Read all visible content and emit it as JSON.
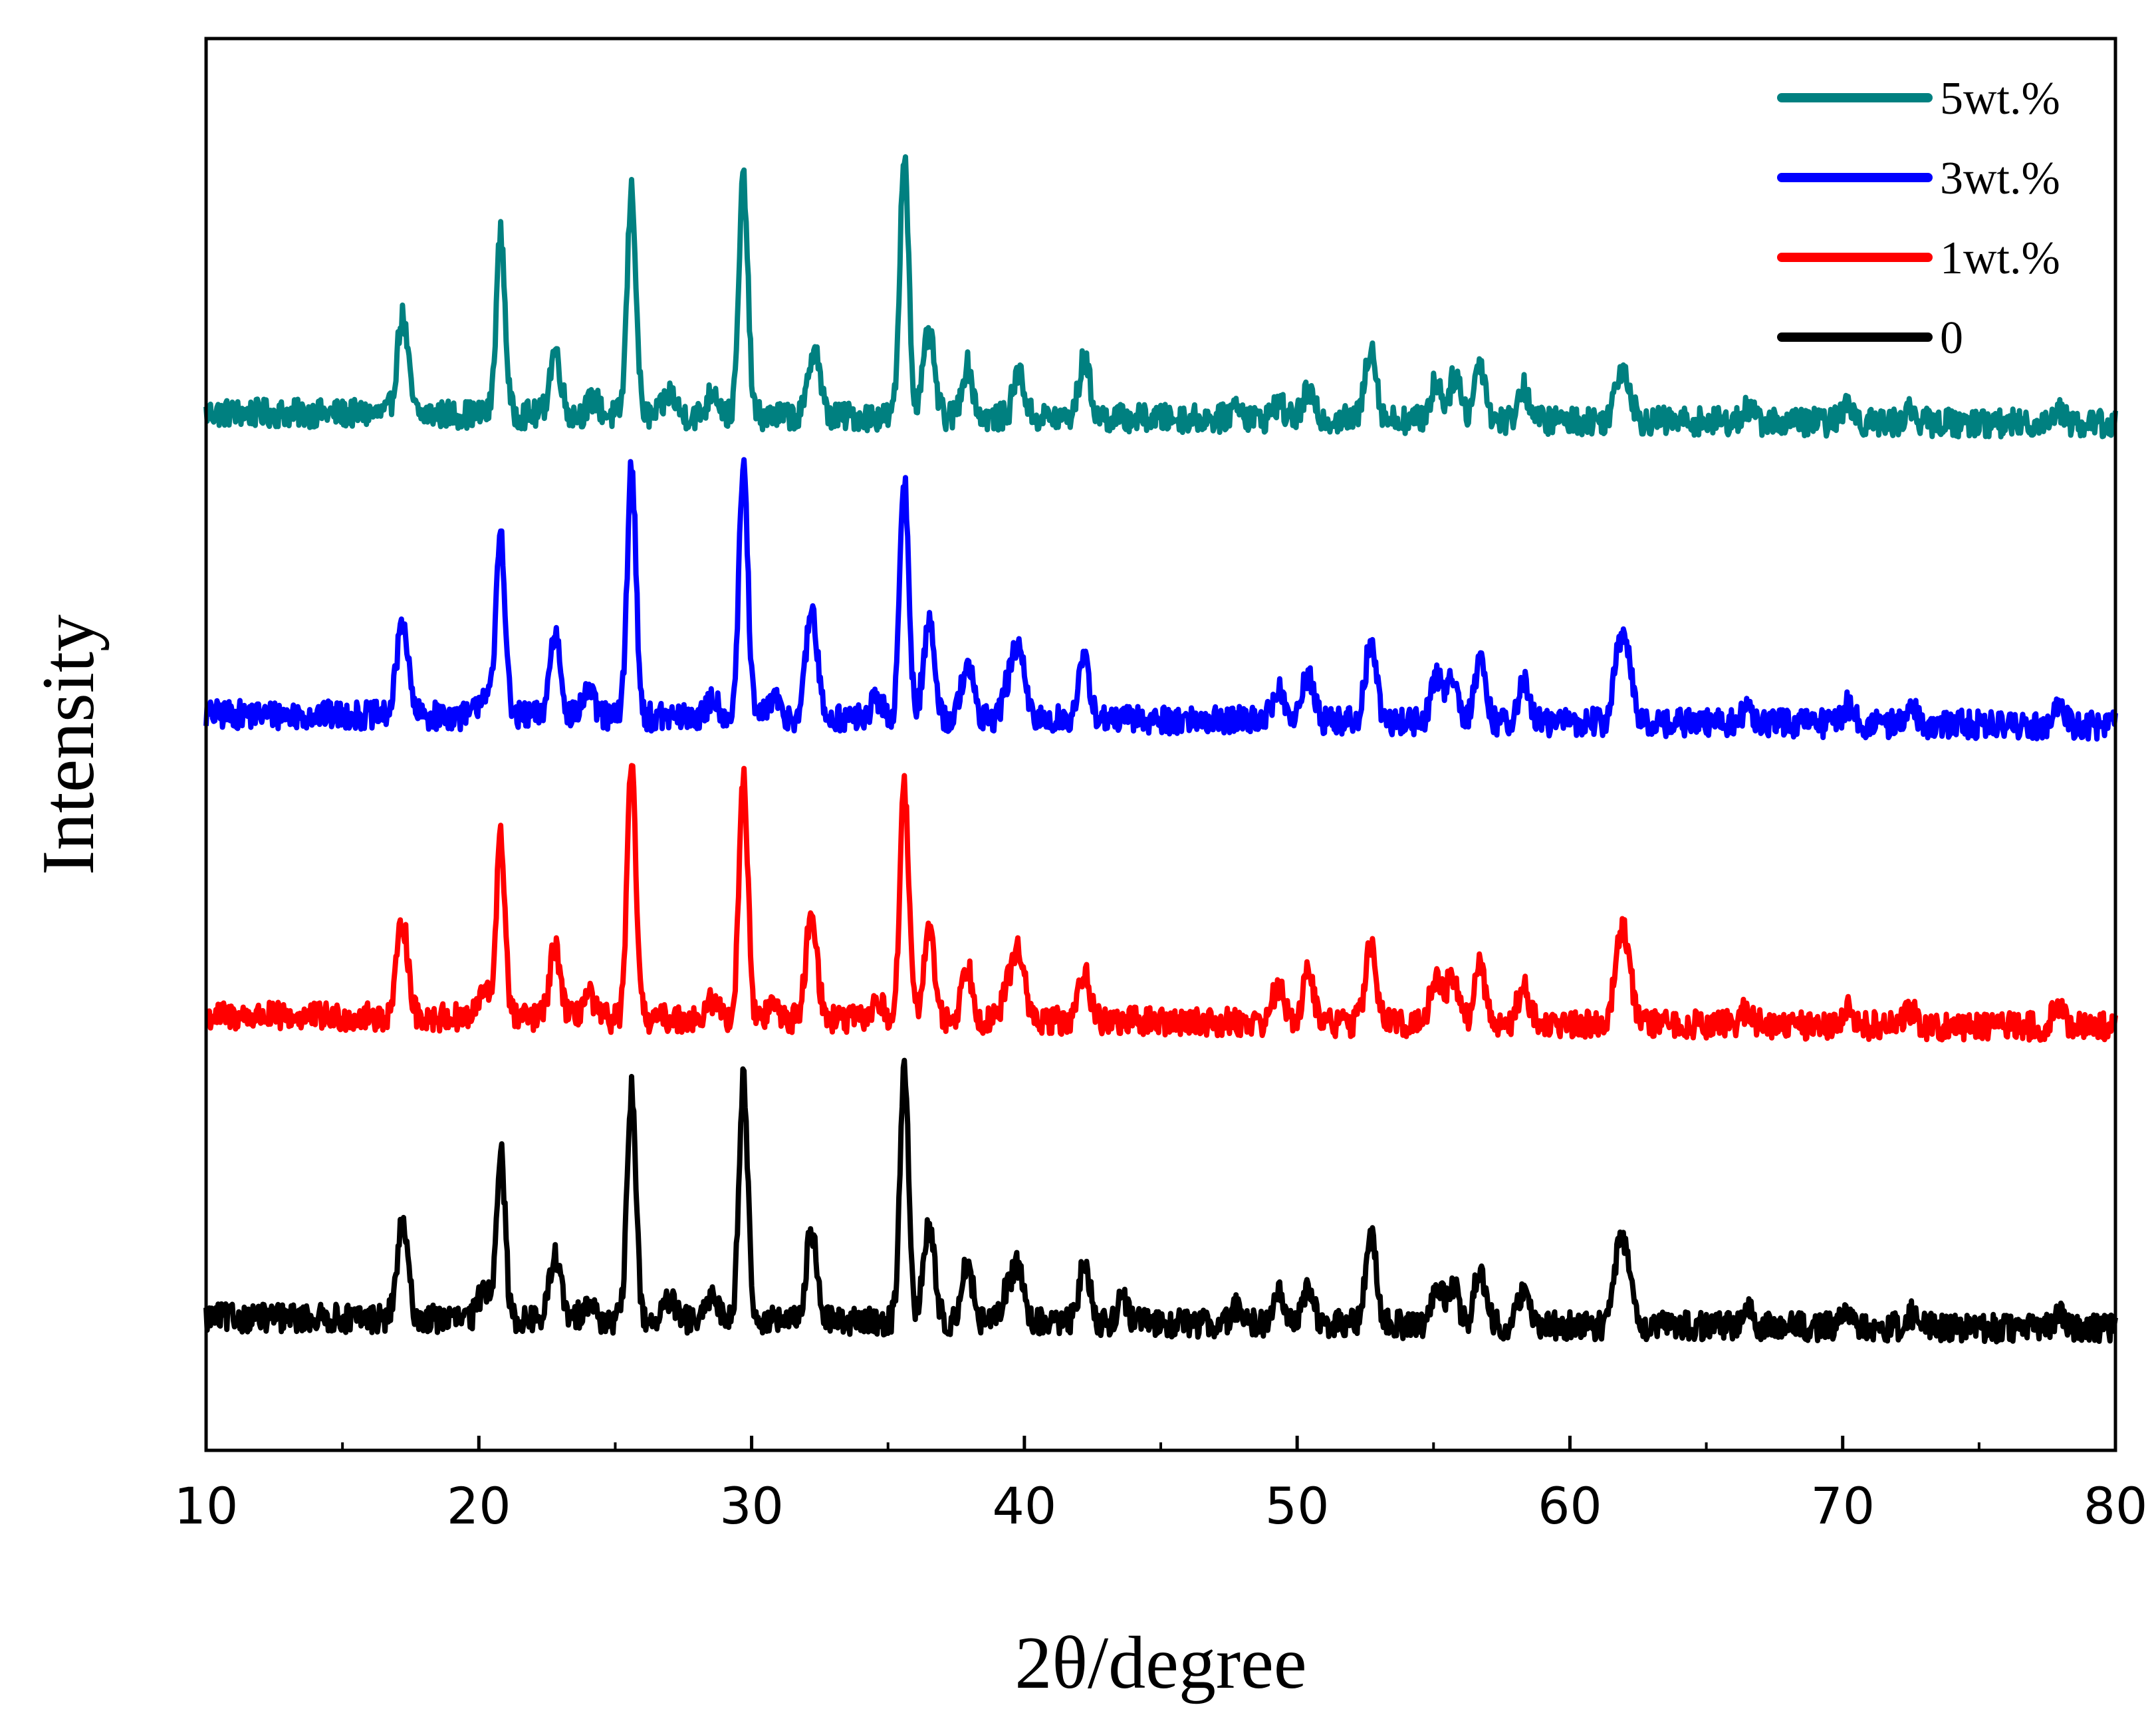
{
  "chart_data": {
    "type": "line",
    "title": "",
    "xlabel": "2θ/degree",
    "ylabel": "Intensity",
    "xlim": [
      10,
      80
    ],
    "x_ticks": [
      "10",
      "20",
      "30",
      "40",
      "50",
      "60",
      "70",
      "80"
    ],
    "y_ticks": [],
    "ylim": [
      0,
      1100
    ],
    "grid": false,
    "legend_position": "top-right",
    "description_note": "XRD patterns vertically offset (stacked), y-axis unlabeled arbitrary units",
    "series": [
      {
        "name": "5wt.%",
        "color": "#008080",
        "baseline": 800,
        "peaks": [
          [
            17.2,
            75
          ],
          [
            20.8,
            140
          ],
          [
            22.8,
            50
          ],
          [
            24.2,
            12
          ],
          [
            25.6,
            175
          ],
          [
            27.0,
            18
          ],
          [
            28.6,
            20
          ],
          [
            29.7,
            185
          ],
          [
            32.3,
            55
          ],
          [
            35.6,
            205
          ],
          [
            36.5,
            65
          ],
          [
            37.9,
            40
          ],
          [
            39.8,
            35
          ],
          [
            42.2,
            45
          ],
          [
            47.8,
            12
          ],
          [
            49.3,
            12
          ],
          [
            50.4,
            20
          ],
          [
            52.7,
            58
          ],
          [
            55.1,
            30
          ],
          [
            55.8,
            35
          ],
          [
            56.7,
            45
          ],
          [
            58.3,
            25
          ],
          [
            61.8,
            30
          ],
          [
            62.1,
            25
          ],
          [
            66.5,
            10
          ],
          [
            70.2,
            15
          ],
          [
            72.5,
            10
          ],
          [
            77.9,
            12
          ]
        ]
      },
      {
        "name": "3wt.%",
        "color": "#0000ff",
        "baseline": 565,
        "peaks": [
          [
            17.2,
            75
          ],
          [
            20.2,
            20
          ],
          [
            20.8,
            145
          ],
          [
            22.8,
            65
          ],
          [
            24.0,
            20
          ],
          [
            25.6,
            195
          ],
          [
            28.6,
            15
          ],
          [
            29.7,
            195
          ],
          [
            30.8,
            15
          ],
          [
            32.2,
            85
          ],
          [
            34.6,
            15
          ],
          [
            35.6,
            185
          ],
          [
            36.5,
            75
          ],
          [
            37.9,
            45
          ],
          [
            39.4,
            25
          ],
          [
            39.8,
            55
          ],
          [
            42.2,
            45
          ],
          [
            49.3,
            25
          ],
          [
            50.4,
            35
          ],
          [
            52.7,
            60
          ],
          [
            55.1,
            35
          ],
          [
            55.7,
            38
          ],
          [
            56.7,
            45
          ],
          [
            58.3,
            30
          ],
          [
            61.8,
            50
          ],
          [
            62.1,
            42
          ],
          [
            66.5,
            10
          ],
          [
            70.2,
            15
          ],
          [
            72.5,
            12
          ],
          [
            77.9,
            15
          ]
        ]
      },
      {
        "name": "1wt.%",
        "color": "#ff0000",
        "baseline": 330,
        "peaks": [
          [
            17.2,
            75
          ],
          [
            20.2,
            20
          ],
          [
            20.8,
            140
          ],
          [
            22.8,
            55
          ],
          [
            24.0,
            18
          ],
          [
            25.6,
            195
          ],
          [
            28.6,
            15
          ],
          [
            29.7,
            190
          ],
          [
            30.8,
            12
          ],
          [
            32.2,
            85
          ],
          [
            34.6,
            15
          ],
          [
            35.6,
            180
          ],
          [
            36.5,
            70
          ],
          [
            37.9,
            42
          ],
          [
            39.4,
            25
          ],
          [
            39.8,
            55
          ],
          [
            42.2,
            40
          ],
          [
            49.3,
            28
          ],
          [
            50.4,
            38
          ],
          [
            52.7,
            60
          ],
          [
            55.1,
            38
          ],
          [
            55.7,
            38
          ],
          [
            56.7,
            45
          ],
          [
            58.3,
            30
          ],
          [
            61.8,
            55
          ],
          [
            62.1,
            45
          ],
          [
            66.5,
            12
          ],
          [
            70.2,
            15
          ],
          [
            72.5,
            12
          ],
          [
            77.9,
            15
          ]
        ]
      },
      {
        "name": "0",
        "color": "#000000",
        "baseline": 95,
        "peaks": [
          [
            17.2,
            72
          ],
          [
            20.2,
            25
          ],
          [
            20.8,
            132
          ],
          [
            22.8,
            50
          ],
          [
            24.0,
            15
          ],
          [
            25.6,
            180
          ],
          [
            27.0,
            15
          ],
          [
            28.6,
            20
          ],
          [
            29.7,
            190
          ],
          [
            32.2,
            70
          ],
          [
            35.6,
            195
          ],
          [
            36.5,
            75
          ],
          [
            37.9,
            45
          ],
          [
            39.4,
            25
          ],
          [
            39.8,
            40
          ],
          [
            42.2,
            45
          ],
          [
            43.6,
            18
          ],
          [
            47.8,
            12
          ],
          [
            49.3,
            25
          ],
          [
            50.4,
            28
          ],
          [
            52.7,
            68
          ],
          [
            55.1,
            30
          ],
          [
            55.7,
            32
          ],
          [
            56.7,
            45
          ],
          [
            58.3,
            25
          ],
          [
            61.8,
            50
          ],
          [
            62.1,
            38
          ],
          [
            66.5,
            12
          ],
          [
            70.2,
            12
          ],
          [
            72.5,
            10
          ],
          [
            77.9,
            10
          ]
        ]
      }
    ]
  }
}
